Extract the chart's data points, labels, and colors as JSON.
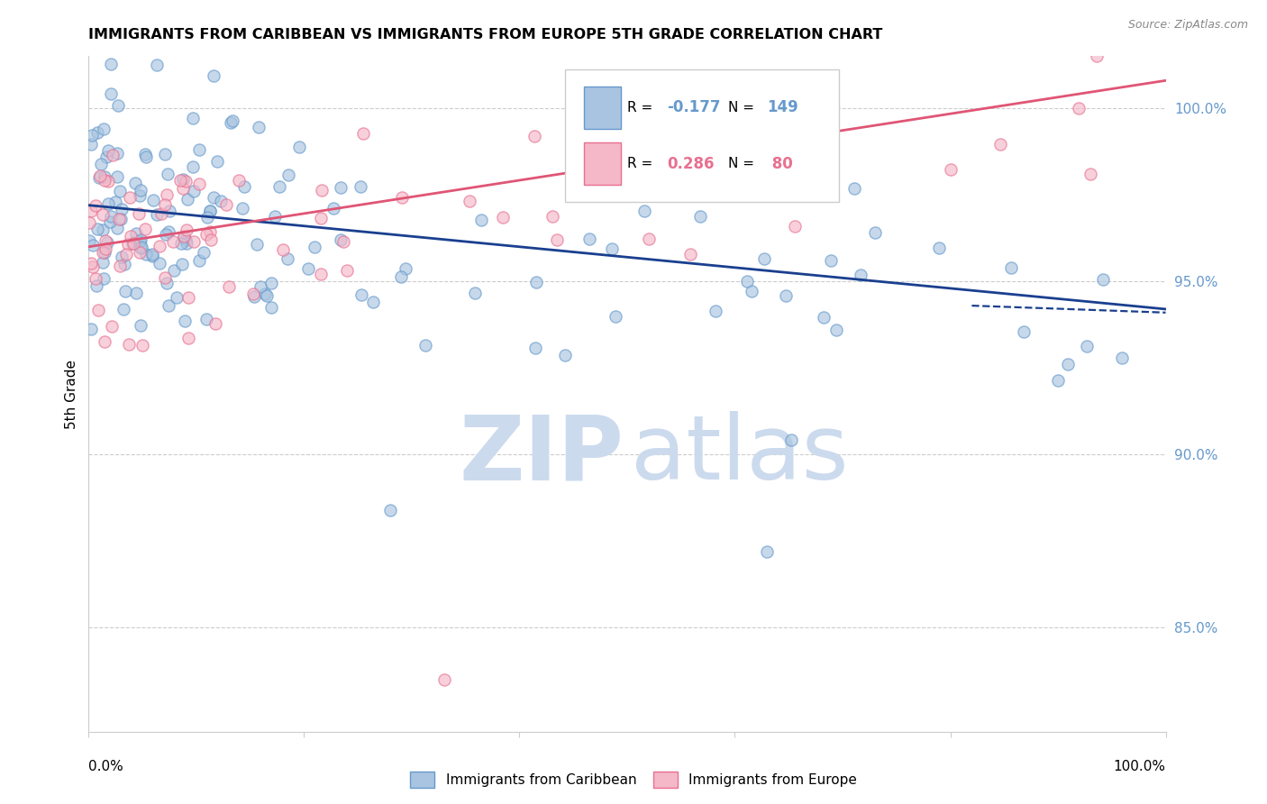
{
  "title": "IMMIGRANTS FROM CARIBBEAN VS IMMIGRANTS FROM EUROPE 5TH GRADE CORRELATION CHART",
  "source": "Source: ZipAtlas.com",
  "ylabel": "5th Grade",
  "right_yticks": [
    100.0,
    95.0,
    90.0,
    85.0
  ],
  "legend_blue_label": "Immigrants from Caribbean",
  "legend_pink_label": "Immigrants from Europe",
  "blue_R": "-0.177",
  "blue_N": "149",
  "pink_R": "0.286",
  "pink_N": "80",
  "xmin": 0,
  "xmax": 100,
  "ymin": 82.0,
  "ymax": 101.5,
  "blue_color": "#6699cc",
  "pink_color": "#e87090",
  "blue_line_color": "#1a3f8f",
  "pink_line_color": "#e05575",
  "blue_fill_color": "#a8c4e0",
  "pink_fill_color": "#f4b8c8",
  "grid_color": "#cccccc",
  "blue_line_y_start": 97.2,
  "blue_line_y_end": 94.2,
  "pink_line_y_start": 96.0,
  "pink_line_y_end": 100.8,
  "blue_dash_x_start": 82,
  "blue_dash_x_end": 100,
  "blue_dash_y_start": 94.3,
  "blue_dash_y_end": 94.1
}
